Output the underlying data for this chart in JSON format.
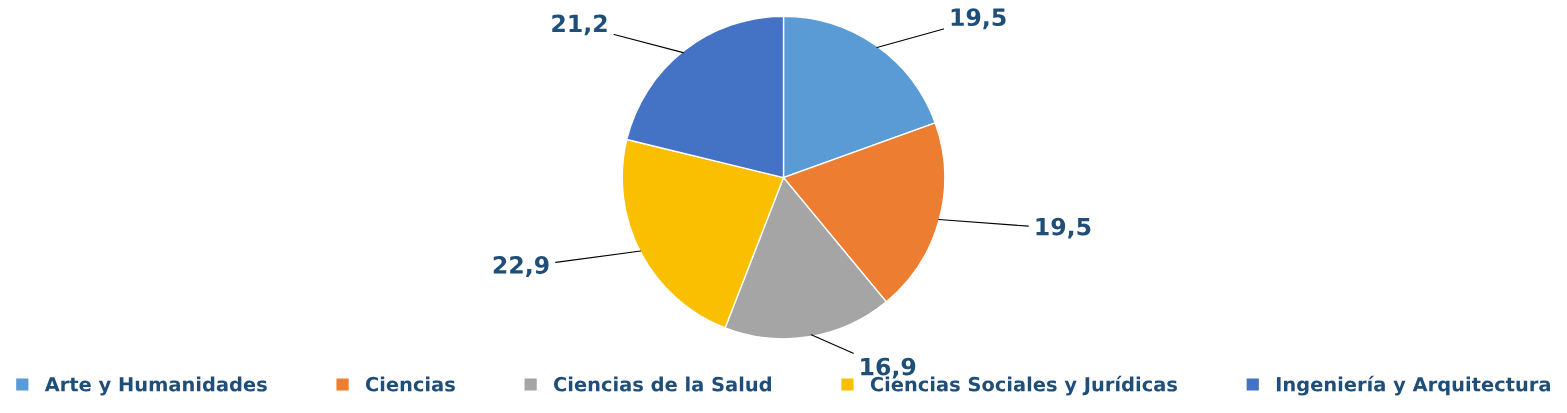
{
  "chart_data": {
    "type": "pie",
    "categories": [
      "Arte y Humanidades",
      "Ciencias",
      "Ciencias de la Salud",
      "Ciencias Sociales y Jurídicas",
      "Ingeniería y Arquitectura"
    ],
    "values": [
      19.5,
      19.5,
      16.9,
      22.9,
      21.2
    ],
    "value_labels": [
      "19,5",
      "19,5",
      "16,9",
      "22,9",
      "21,2"
    ],
    "colors": [
      "#5b9bd5",
      "#ed7d31",
      "#a5a5a5",
      "#f9bf00",
      "#4472c4"
    ],
    "legend": "bottom"
  }
}
